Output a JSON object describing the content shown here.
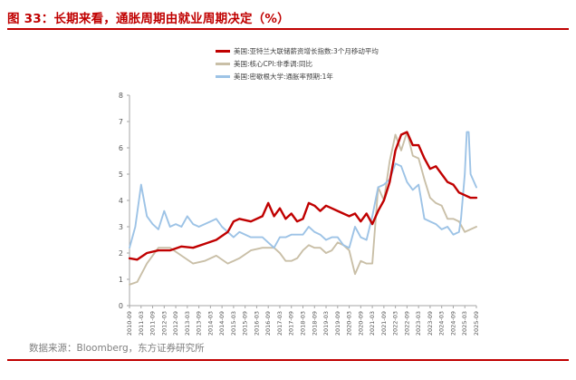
{
  "figure": {
    "title": "图 33：长期来看，通胀周期由就业周期决定（%）",
    "source": "数据来源：Bloomberg，东方证券研究所"
  },
  "chart_data": {
    "type": "line",
    "title": "图 33：长期来看，通胀周期由就业周期决定（%）",
    "xlabel": "",
    "ylabel": "",
    "ylim": [
      0,
      8
    ],
    "yticks": [
      0,
      1,
      2,
      3,
      4,
      5,
      6,
      7,
      8
    ],
    "grid": false,
    "legend_position": "top",
    "x_tick_labels": [
      "2010-09",
      "2011-03",
      "2011-09",
      "2012-03",
      "2012-09",
      "2013-03",
      "2013-09",
      "2014-03",
      "2014-09",
      "2015-03",
      "2015-09",
      "2016-03",
      "2016-09",
      "2017-03",
      "2017-09",
      "2018-03",
      "2018-09",
      "2019-03",
      "2019-09",
      "2020-03",
      "2020-09",
      "2021-03",
      "2021-09",
      "2022-03",
      "2022-09",
      "2023-03",
      "2023-09",
      "2024-03",
      "2024-09",
      "2025-03",
      "2025-09"
    ],
    "series": [
      {
        "name": "美国:亚特兰大联储薪资增长指数:3个月移动平均",
        "color": "#c00000",
        "points": [
          [
            "2010-09",
            1.8
          ],
          [
            "2011-01",
            1.75
          ],
          [
            "2011-06",
            2.0
          ],
          [
            "2011-12",
            2.1
          ],
          [
            "2012-06",
            2.1
          ],
          [
            "2012-12",
            2.25
          ],
          [
            "2013-06",
            2.2
          ],
          [
            "2013-12",
            2.35
          ],
          [
            "2014-06",
            2.5
          ],
          [
            "2014-12",
            2.8
          ],
          [
            "2015-03",
            3.2
          ],
          [
            "2015-06",
            3.3
          ],
          [
            "2015-12",
            3.2
          ],
          [
            "2016-06",
            3.4
          ],
          [
            "2016-09",
            3.9
          ],
          [
            "2016-12",
            3.4
          ],
          [
            "2017-03",
            3.7
          ],
          [
            "2017-06",
            3.3
          ],
          [
            "2017-09",
            3.5
          ],
          [
            "2017-12",
            3.2
          ],
          [
            "2018-03",
            3.3
          ],
          [
            "2018-06",
            3.9
          ],
          [
            "2018-09",
            3.8
          ],
          [
            "2018-12",
            3.6
          ],
          [
            "2019-03",
            3.8
          ],
          [
            "2019-06",
            3.7
          ],
          [
            "2019-09",
            3.6
          ],
          [
            "2019-12",
            3.5
          ],
          [
            "2020-03",
            3.4
          ],
          [
            "2020-06",
            3.5
          ],
          [
            "2020-09",
            3.2
          ],
          [
            "2020-12",
            3.5
          ],
          [
            "2021-03",
            3.1
          ],
          [
            "2021-06",
            3.6
          ],
          [
            "2021-09",
            4.0
          ],
          [
            "2021-12",
            4.7
          ],
          [
            "2022-03",
            5.9
          ],
          [
            "2022-06",
            6.5
          ],
          [
            "2022-09",
            6.6
          ],
          [
            "2022-12",
            6.1
          ],
          [
            "2023-03",
            6.1
          ],
          [
            "2023-06",
            5.6
          ],
          [
            "2023-09",
            5.2
          ],
          [
            "2023-12",
            5.3
          ],
          [
            "2024-03",
            5.0
          ],
          [
            "2024-06",
            4.7
          ],
          [
            "2024-09",
            4.6
          ],
          [
            "2024-12",
            4.3
          ],
          [
            "2025-03",
            4.2
          ],
          [
            "2025-06",
            4.1
          ],
          [
            "2025-09",
            4.1
          ]
        ]
      },
      {
        "name": "美国:核心CPI:非季调:同比",
        "color": "#c9bfa7",
        "points": [
          [
            "2010-09",
            0.8
          ],
          [
            "2011-01",
            0.9
          ],
          [
            "2011-06",
            1.6
          ],
          [
            "2011-12",
            2.2
          ],
          [
            "2012-06",
            2.2
          ],
          [
            "2012-12",
            1.9
          ],
          [
            "2013-06",
            1.6
          ],
          [
            "2013-12",
            1.7
          ],
          [
            "2014-06",
            1.9
          ],
          [
            "2014-12",
            1.6
          ],
          [
            "2015-03",
            1.7
          ],
          [
            "2015-06",
            1.8
          ],
          [
            "2015-12",
            2.1
          ],
          [
            "2016-06",
            2.2
          ],
          [
            "2016-09",
            2.2
          ],
          [
            "2016-12",
            2.2
          ],
          [
            "2017-03",
            2.0
          ],
          [
            "2017-06",
            1.7
          ],
          [
            "2017-09",
            1.7
          ],
          [
            "2017-12",
            1.8
          ],
          [
            "2018-03",
            2.1
          ],
          [
            "2018-06",
            2.3
          ],
          [
            "2018-09",
            2.2
          ],
          [
            "2018-12",
            2.2
          ],
          [
            "2019-03",
            2.0
          ],
          [
            "2019-06",
            2.1
          ],
          [
            "2019-09",
            2.4
          ],
          [
            "2019-12",
            2.3
          ],
          [
            "2020-03",
            2.1
          ],
          [
            "2020-06",
            1.2
          ],
          [
            "2020-09",
            1.7
          ],
          [
            "2020-12",
            1.6
          ],
          [
            "2021-03",
            1.6
          ],
          [
            "2021-06",
            4.5
          ],
          [
            "2021-09",
            4.0
          ],
          [
            "2021-12",
            5.5
          ],
          [
            "2022-03",
            6.5
          ],
          [
            "2022-06",
            5.9
          ],
          [
            "2022-09",
            6.6
          ],
          [
            "2022-12",
            5.7
          ],
          [
            "2023-03",
            5.6
          ],
          [
            "2023-06",
            4.8
          ],
          [
            "2023-09",
            4.1
          ],
          [
            "2023-12",
            3.9
          ],
          [
            "2024-03",
            3.8
          ],
          [
            "2024-06",
            3.3
          ],
          [
            "2024-09",
            3.3
          ],
          [
            "2024-12",
            3.2
          ],
          [
            "2025-03",
            2.8
          ],
          [
            "2025-06",
            2.9
          ],
          [
            "2025-09",
            3.0
          ]
        ]
      },
      {
        "name": "美国:密歇根大学:通胀率预期:1年",
        "color": "#9dc3e6",
        "points": [
          [
            "2010-09",
            2.2
          ],
          [
            "2010-12",
            3.0
          ],
          [
            "2011-03",
            4.6
          ],
          [
            "2011-06",
            3.4
          ],
          [
            "2011-09",
            3.1
          ],
          [
            "2011-12",
            2.9
          ],
          [
            "2012-03",
            3.6
          ],
          [
            "2012-06",
            3.0
          ],
          [
            "2012-09",
            3.1
          ],
          [
            "2012-12",
            3.0
          ],
          [
            "2013-03",
            3.4
          ],
          [
            "2013-06",
            3.1
          ],
          [
            "2013-09",
            3.0
          ],
          [
            "2013-12",
            3.1
          ],
          [
            "2014-03",
            3.2
          ],
          [
            "2014-06",
            3.3
          ],
          [
            "2014-09",
            3.0
          ],
          [
            "2014-12",
            2.8
          ],
          [
            "2015-03",
            2.6
          ],
          [
            "2015-06",
            2.8
          ],
          [
            "2015-12",
            2.6
          ],
          [
            "2016-06",
            2.6
          ],
          [
            "2016-09",
            2.4
          ],
          [
            "2016-12",
            2.2
          ],
          [
            "2017-03",
            2.6
          ],
          [
            "2017-06",
            2.6
          ],
          [
            "2017-09",
            2.7
          ],
          [
            "2017-12",
            2.7
          ],
          [
            "2018-03",
            2.7
          ],
          [
            "2018-06",
            3.0
          ],
          [
            "2018-09",
            2.8
          ],
          [
            "2018-12",
            2.7
          ],
          [
            "2019-03",
            2.5
          ],
          [
            "2019-06",
            2.6
          ],
          [
            "2019-09",
            2.6
          ],
          [
            "2019-12",
            2.3
          ],
          [
            "2020-03",
            2.2
          ],
          [
            "2020-06",
            3.0
          ],
          [
            "2020-09",
            2.6
          ],
          [
            "2020-12",
            2.5
          ],
          [
            "2021-03",
            3.4
          ],
          [
            "2021-06",
            4.5
          ],
          [
            "2021-09",
            4.6
          ],
          [
            "2021-12",
            4.8
          ],
          [
            "2022-03",
            5.4
          ],
          [
            "2022-06",
            5.3
          ],
          [
            "2022-09",
            4.7
          ],
          [
            "2022-12",
            4.4
          ],
          [
            "2023-03",
            4.6
          ],
          [
            "2023-06",
            3.3
          ],
          [
            "2023-09",
            3.2
          ],
          [
            "2023-12",
            3.1
          ],
          [
            "2024-03",
            2.9
          ],
          [
            "2024-06",
            3.0
          ],
          [
            "2024-09",
            2.7
          ],
          [
            "2024-12",
            2.8
          ],
          [
            "2025-01",
            3.3
          ],
          [
            "2025-03",
            5.0
          ],
          [
            "2025-04",
            6.6
          ],
          [
            "2025-05",
            6.6
          ],
          [
            "2025-06",
            5.0
          ],
          [
            "2025-09",
            4.5
          ]
        ]
      }
    ]
  }
}
